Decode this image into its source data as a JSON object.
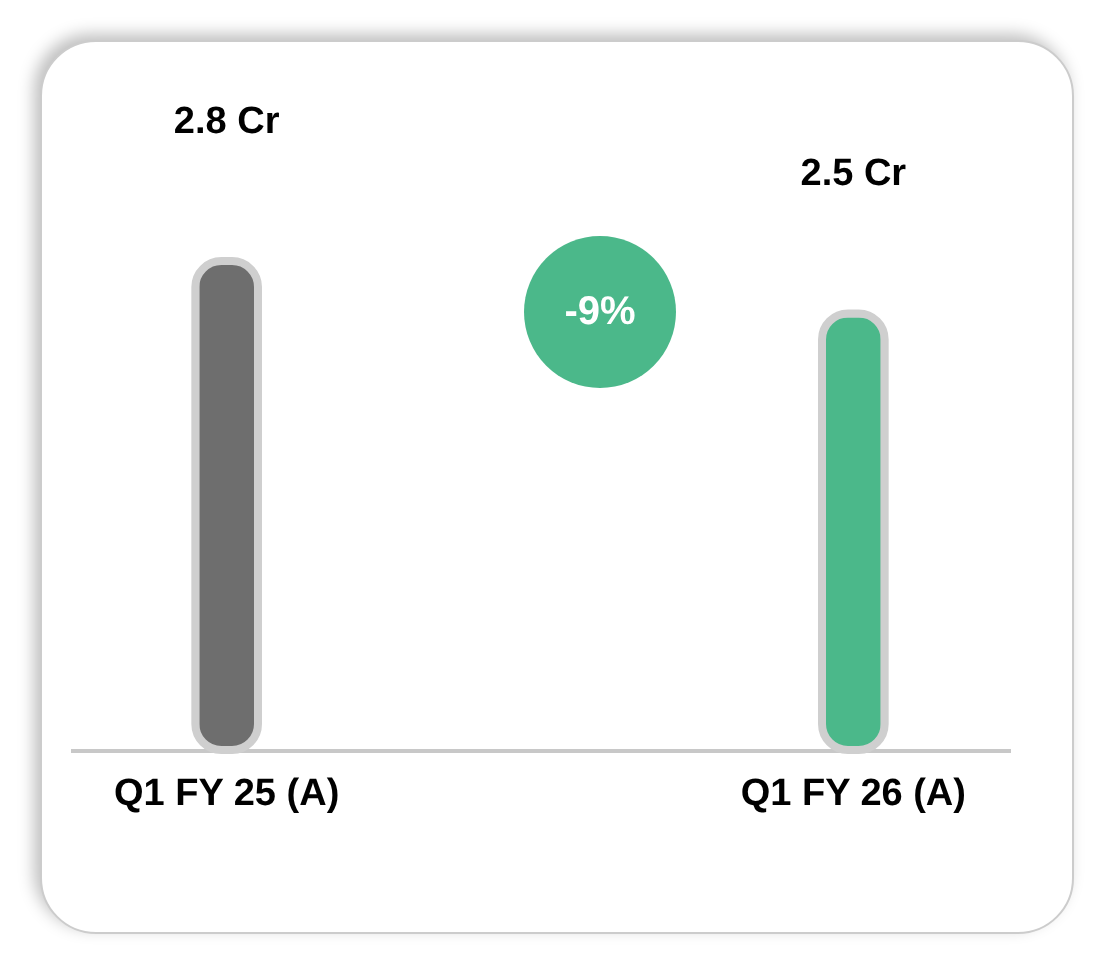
{
  "chart_data": {
    "type": "bar",
    "categories": [
      "Q1 FY 25 (A)",
      "Q1 FY 26 (A)"
    ],
    "values": [
      2.8,
      2.5
    ],
    "colors": [
      "#6e6e6e",
      "#4bb88a"
    ],
    "value_labels": [
      "2.8 Cr",
      "2.5 Cr"
    ],
    "annotations": [
      "-9%"
    ]
  }
}
